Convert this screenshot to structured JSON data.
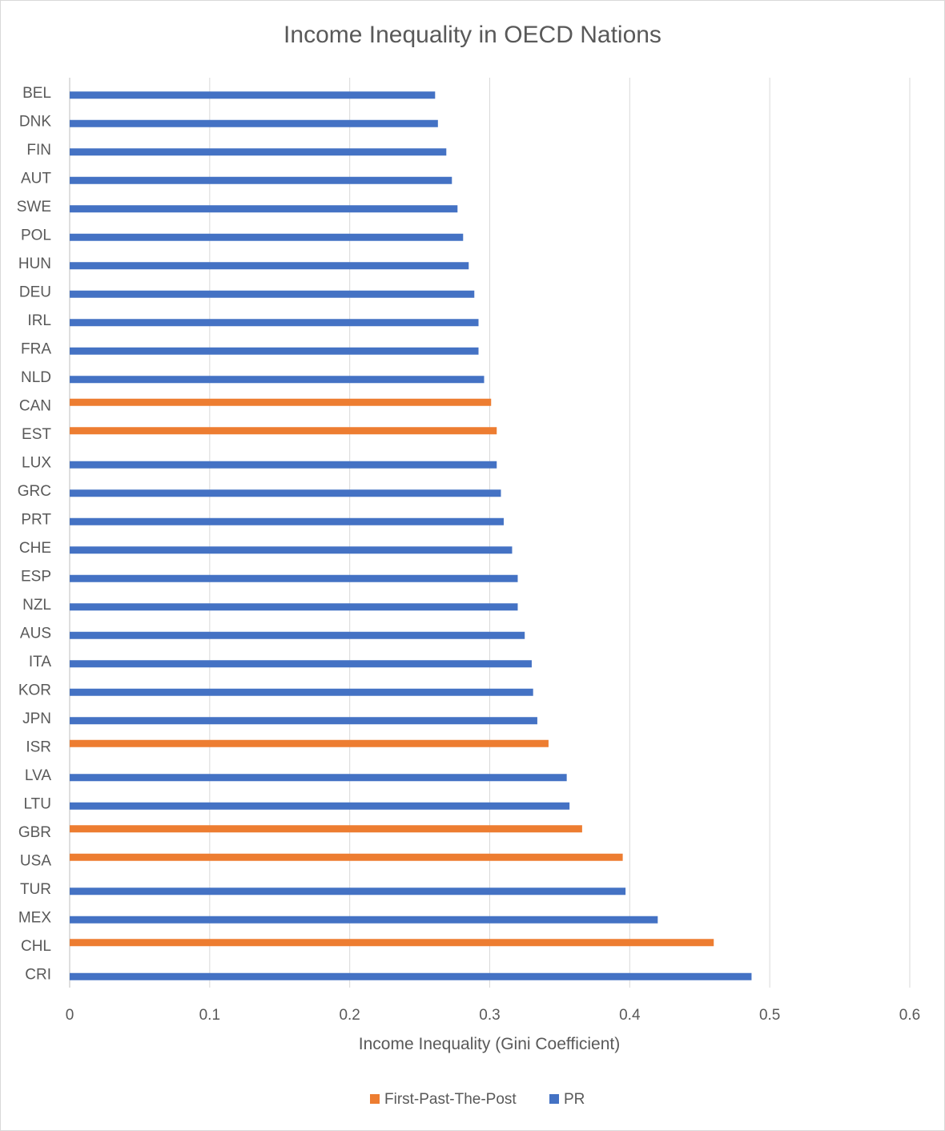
{
  "chart_data": {
    "type": "bar",
    "orientation": "horizontal",
    "title": "Income Inequality in OECD Nations",
    "xlabel": "Income Inequality (Gini Coefficient)",
    "ylabel": "",
    "xlim": [
      0,
      0.6
    ],
    "xticks": [
      "0",
      "0.1",
      "0.2",
      "0.3",
      "0.4",
      "0.5",
      "0.6"
    ],
    "grid": true,
    "legend_position": "bottom",
    "categories": [
      "BEL",
      "DNK",
      "FIN",
      "AUT",
      "SWE",
      "POL",
      "HUN",
      "DEU",
      "IRL",
      "FRA",
      "NLD",
      "CAN",
      "EST",
      "LUX",
      "GRC",
      "PRT",
      "CHE",
      "ESP",
      "NZL",
      "AUS",
      "ITA",
      "KOR",
      "JPN",
      "ISR",
      "LVA",
      "LTU",
      "GBR",
      "USA",
      "TUR",
      "MEX",
      "CHL",
      "CRI"
    ],
    "values": [
      0.261,
      0.263,
      0.269,
      0.273,
      0.277,
      0.281,
      0.285,
      0.289,
      0.292,
      0.292,
      0.296,
      0.301,
      0.305,
      0.305,
      0.308,
      0.31,
      0.316,
      0.32,
      0.32,
      0.325,
      0.33,
      0.331,
      0.334,
      0.342,
      0.355,
      0.357,
      0.366,
      0.395,
      0.397,
      0.42,
      0.46,
      0.487
    ],
    "system": [
      "PR",
      "PR",
      "PR",
      "PR",
      "PR",
      "PR",
      "PR",
      "PR",
      "PR",
      "PR",
      "PR",
      "FPTP",
      "FPTP",
      "PR",
      "PR",
      "PR",
      "PR",
      "PR",
      "PR",
      "PR",
      "PR",
      "PR",
      "PR",
      "FPTP",
      "PR",
      "PR",
      "FPTP",
      "FPTP",
      "PR",
      "PR",
      "FPTP",
      "PR"
    ],
    "series": [
      {
        "key": "FPTP",
        "name": "First-Past-The-Post",
        "color": "#ED7D31"
      },
      {
        "key": "PR",
        "name": "PR",
        "color": "#4472C4"
      }
    ]
  }
}
